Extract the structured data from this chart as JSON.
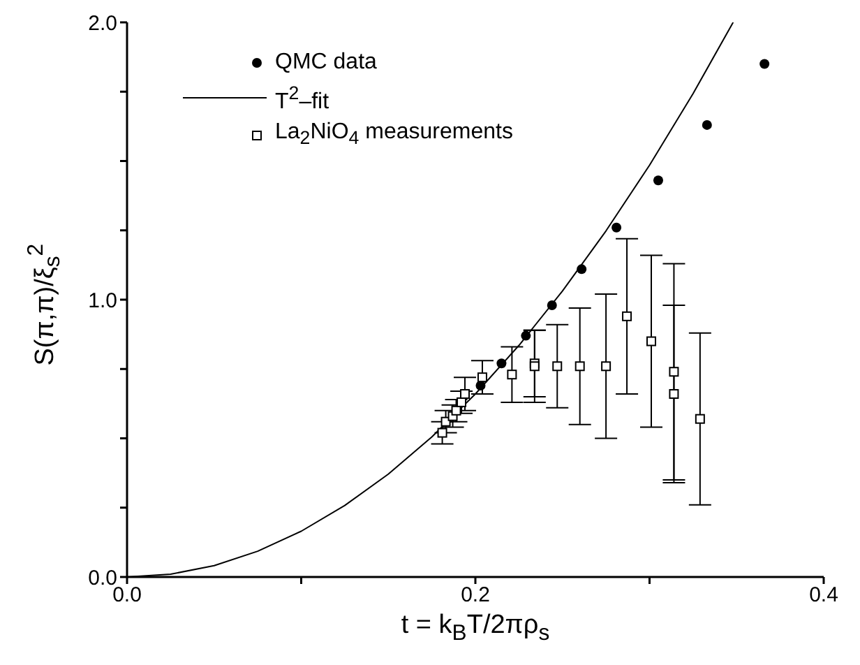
{
  "chart_data": {
    "type": "scatter",
    "xlabel": "t = k$_{B}$T/2πρ$_{s}$",
    "ylabel": "S(π,π)/ξ$_{s}$$^{2}$",
    "xlim": [
      0,
      0.4
    ],
    "ylim": [
      0,
      2
    ],
    "xticks": [
      {
        "value": 0,
        "label": "0.0"
      },
      {
        "value": 0.1,
        "label": null
      },
      {
        "value": 0.2,
        "label": "0.2"
      },
      {
        "value": 0.3,
        "label": null
      },
      {
        "value": 0.4,
        "label": "0.4"
      }
    ],
    "yticks": [
      {
        "value": 0,
        "label": "0.0"
      },
      {
        "value": 0.25,
        "label": null
      },
      {
        "value": 0.5,
        "label": null
      },
      {
        "value": 0.75,
        "label": null
      },
      {
        "value": 1,
        "label": "1.0"
      },
      {
        "value": 1.25,
        "label": null
      },
      {
        "value": 1.5,
        "label": null
      },
      {
        "value": 1.75,
        "label": null
      },
      {
        "value": 2,
        "label": "2.0"
      }
    ],
    "legend": "top left",
    "series": [
      {
        "name": "QMC data",
        "marker": "circle",
        "color": "#000000",
        "x": [
          0.203,
          0.215,
          0.229,
          0.244,
          0.261,
          0.281,
          0.305,
          0.333,
          0.366
        ],
        "values": [
          0.69,
          0.77,
          0.87,
          0.98,
          1.11,
          1.26,
          1.43,
          1.63,
          1.85
        ]
      },
      {
        "name": "T$^{2}$–fit",
        "type": "line",
        "marker": "none",
        "line_style": "solid",
        "color": "#000000",
        "x": [
          0,
          0.025,
          0.05,
          0.075,
          0.1,
          0.125,
          0.15,
          0.175,
          0.2,
          0.225,
          0.25,
          0.275,
          0.3,
          0.325,
          0.348
        ],
        "values": [
          0,
          0.01,
          0.041,
          0.093,
          0.165,
          0.258,
          0.371,
          0.505,
          0.66,
          0.835,
          1.031,
          1.248,
          1.485,
          1.743,
          2.0
        ]
      },
      {
        "name": "La$_{2}$NiO$_{4}$ measurements",
        "marker": "square",
        "color": "#000000",
        "x": [
          0.181,
          0.183,
          0.187,
          0.189,
          0.192,
          0.194,
          0.204,
          0.221,
          0.234,
          0.234,
          0.247,
          0.26,
          0.275,
          0.287,
          0.301,
          0.314,
          0.314,
          0.329
        ],
        "values": [
          0.52,
          0.56,
          0.58,
          0.6,
          0.63,
          0.66,
          0.72,
          0.73,
          0.77,
          0.76,
          0.76,
          0.76,
          0.76,
          0.94,
          0.85,
          0.74,
          0.66,
          0.57
        ],
        "errors": [
          0.04,
          0.04,
          0.04,
          0.04,
          0.04,
          0.06,
          0.06,
          0.1,
          0.12,
          0.13,
          0.15,
          0.21,
          0.26,
          0.28,
          0.31,
          0.39,
          0.32,
          0.31
        ]
      }
    ]
  }
}
